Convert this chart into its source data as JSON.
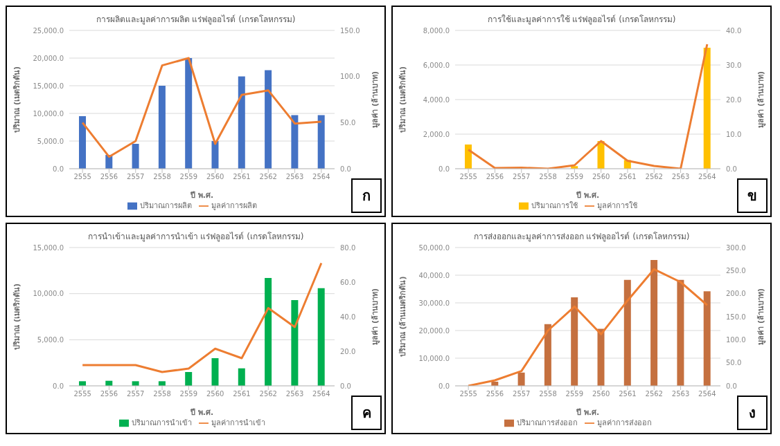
{
  "chart_data": [
    {
      "type": "bar",
      "title": "การผลิตและมูลค่าการผลิต แร่ฟลูออไรต์ (เกรดโลหกรรม)",
      "xlabel": "ปี พ.ศ.",
      "ylabel": "ปริมาณ (เมตริกตัน)",
      "y2label": "มูลค่า (ล้านบาท)",
      "annotations": [
        "ก"
      ],
      "categories": [
        "2555",
        "2556",
        "2557",
        "2558",
        "2559",
        "2560",
        "2561",
        "2562",
        "2563",
        "2564"
      ],
      "series": [
        {
          "name": "ปริมาณการผลิต",
          "color": "#4472c4",
          "values": [
            9500,
            2500,
            4500,
            15000,
            20000,
            5000,
            16700,
            17800,
            9700,
            9700
          ]
        },
        {
          "name": "มูลค่าการผลิต",
          "type": "line",
          "axis": "y2",
          "color": "#ed7d31",
          "values": [
            50,
            13,
            30,
            112,
            120,
            27,
            80,
            85,
            49,
            51
          ]
        }
      ],
      "ylim": [
        0,
        25000
      ],
      "yticks": [
        {
          "value": 0,
          "label": "0.0"
        },
        {
          "value": 5000,
          "label": "5,000.0"
        },
        {
          "value": 10000,
          "label": "10,000.0"
        },
        {
          "value": 15000,
          "label": "15,000.0"
        },
        {
          "value": 20000,
          "label": "20,000.0"
        },
        {
          "value": 25000,
          "label": "25,000.0"
        }
      ],
      "y2lim": [
        0,
        150
      ],
      "y2ticks": [
        {
          "value": 0,
          "label": "0.0"
        },
        {
          "value": 50,
          "label": "50.0"
        },
        {
          "value": 100,
          "label": "100.0"
        },
        {
          "value": 150,
          "label": "150.0"
        }
      ],
      "grid": "y",
      "legend": "bottom",
      "marker": "none"
    },
    {
      "type": "bar",
      "title": "การใช้และมูลค่าการใช้ แร่ฟลูออไรต์ (เกรดโลหกรรม)",
      "xlabel": "ปี พ.ศ.",
      "ylabel": "ปริมาณ (เมตริกตัน)",
      "y2label": "มูลค่า (ล้านบาท)",
      "annotations": [
        "ข"
      ],
      "categories": [
        "2555",
        "2556",
        "2557",
        "2558",
        "2559",
        "2560",
        "2561",
        "2562",
        "2563",
        "2564"
      ],
      "series": [
        {
          "name": "ปริมาณการใช้",
          "color": "#ffc000",
          "values": [
            1400,
            null,
            30,
            0,
            150,
            1600,
            500,
            null,
            0,
            7000
          ]
        },
        {
          "name": "มูลค่าการใช้",
          "type": "line",
          "axis": "y2",
          "color": "#ed7d31",
          "values": [
            5.5,
            0.2,
            0.3,
            0,
            1,
            8,
            2.3,
            0.8,
            0,
            36
          ]
        }
      ],
      "ylim": [
        0,
        8000
      ],
      "yticks": [
        {
          "value": 0,
          "label": "0.0"
        },
        {
          "value": 2000,
          "label": "2,000.0"
        },
        {
          "value": 4000,
          "label": "4,000.0"
        },
        {
          "value": 6000,
          "label": "6,000.0"
        },
        {
          "value": 8000,
          "label": "8,000.0"
        }
      ],
      "y2lim": [
        0,
        40
      ],
      "y2ticks": [
        {
          "value": 0,
          "label": "0.0"
        },
        {
          "value": 10,
          "label": "10.0"
        },
        {
          "value": 20,
          "label": "20.0"
        },
        {
          "value": 30,
          "label": "30.0"
        },
        {
          "value": 40,
          "label": "40.0"
        }
      ],
      "grid": "y",
      "legend": "bottom",
      "marker": "none"
    },
    {
      "type": "bar",
      "title": "การนำเข้าและมูลค่าการนำเข้า แร่ฟลูออไรต์ (เกรดโลหกรรม)",
      "xlabel": "ปี พ.ศ.",
      "ylabel": "ปริมาณ (เมตริกตัน)",
      "y2label": "มูลค่า (ล้านบาท)",
      "annotations": [
        "ค"
      ],
      "categories": [
        "2555",
        "2556",
        "2557",
        "2558",
        "2559",
        "2560",
        "2561",
        "2562",
        "2563",
        "2564"
      ],
      "series": [
        {
          "name": "ปริมาณการนำเข้า",
          "color": "#00b050",
          "values": [
            500,
            550,
            500,
            500,
            1500,
            3000,
            1900,
            11700,
            9300,
            10600
          ]
        },
        {
          "name": "มูลค่าการนำเข้า",
          "type": "line",
          "axis": "y2",
          "color": "#ed7d31",
          "values": [
            12,
            12,
            12,
            8,
            10,
            21.5,
            16,
            45,
            34,
            71
          ]
        }
      ],
      "ylim": [
        0,
        15000
      ],
      "yticks": [
        {
          "value": 0,
          "label": "0.0"
        },
        {
          "value": 5000,
          "label": "5,000.0"
        },
        {
          "value": 10000,
          "label": "10,000.0"
        },
        {
          "value": 15000,
          "label": "15,000.0"
        }
      ],
      "y2lim": [
        0,
        80
      ],
      "y2ticks": [
        {
          "value": 0,
          "label": "0.0"
        },
        {
          "value": 20,
          "label": "20.0"
        },
        {
          "value": 40,
          "label": "40.0"
        },
        {
          "value": 60,
          "label": "60.0"
        },
        {
          "value": 80,
          "label": "80.0"
        }
      ],
      "grid": "y",
      "legend": "bottom",
      "marker": "none"
    },
    {
      "type": "bar",
      "title": "การส่งออกและมูลค่าการส่งออก แร่ฟลูออไรต์ (เกรดโลหกรรม)",
      "xlabel": "ปี พ.ศ.",
      "ylabel": "ปริมาณ (ล้านเมตริกตัน)",
      "y2label": "มูลค่า (ล้านบาท)",
      "annotations": [
        "ง"
      ],
      "categories": [
        "2555",
        "2556",
        "2557",
        "2558",
        "2559",
        "2560",
        "2561",
        "2562",
        "2563",
        "2564"
      ],
      "series": [
        {
          "name": "ปริมาณการส่งออก",
          "color": "#c5703f",
          "values": [
            0,
            1500,
            4800,
            22300,
            32000,
            20600,
            38300,
            45500,
            38300,
            34200
          ]
        },
        {
          "name": "มูลค่าการส่งออก",
          "type": "line",
          "axis": "y2",
          "color": "#ed7d31",
          "values": [
            0,
            12,
            32,
            120,
            172,
            112,
            185,
            253,
            225,
            175
          ]
        }
      ],
      "ylim": [
        0,
        50000
      ],
      "yticks": [
        {
          "value": 0,
          "label": "0.0"
        },
        {
          "value": 10000,
          "label": "10,000.0"
        },
        {
          "value": 20000,
          "label": "20,000.0"
        },
        {
          "value": 30000,
          "label": "30,000.0"
        },
        {
          "value": 40000,
          "label": "40,000.0"
        },
        {
          "value": 50000,
          "label": "50,000.0"
        }
      ],
      "y2lim": [
        0,
        300
      ],
      "y2ticks": [
        {
          "value": 0,
          "label": "0.0"
        },
        {
          "value": 50,
          "label": "50.0"
        },
        {
          "value": 100,
          "label": "100.0"
        },
        {
          "value": 150,
          "label": "150.0"
        },
        {
          "value": 200,
          "label": "200.0"
        },
        {
          "value": 250,
          "label": "250.0"
        },
        {
          "value": 300,
          "label": "300.0"
        }
      ],
      "grid": "y",
      "legend": "bottom",
      "marker": "none"
    }
  ]
}
